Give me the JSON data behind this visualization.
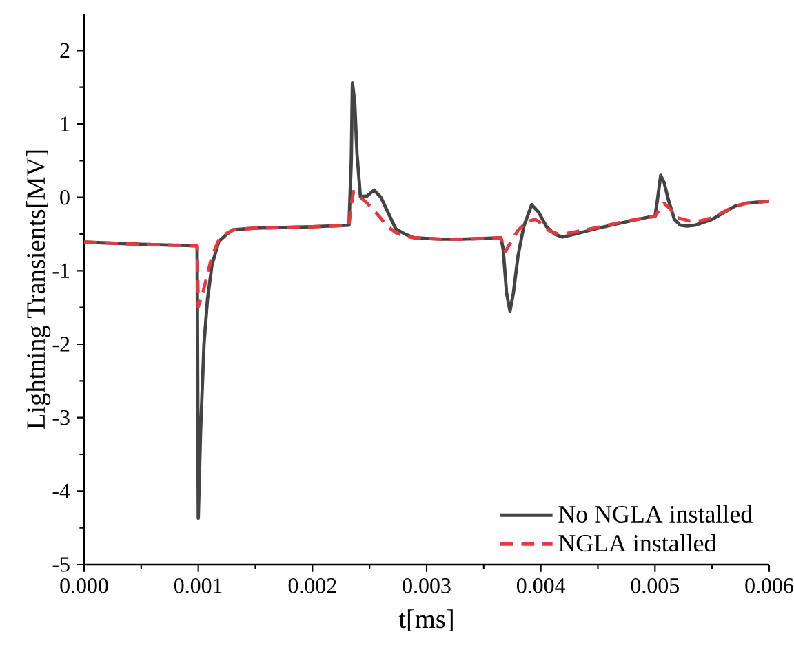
{
  "chart_data": {
    "type": "line",
    "xlabel": "t[ms]",
    "ylabel": "Lightning Transients[MV]",
    "xlim": [
      0,
      0.006
    ],
    "ylim": [
      -5,
      2.5
    ],
    "xticks": [
      {
        "value": 0,
        "label": "0.000"
      },
      0.001,
      0.002,
      0.003,
      0.004,
      0.005,
      0.006
    ],
    "yticks": [
      -5,
      -4,
      -3,
      -2,
      -1,
      0,
      1,
      2
    ],
    "legend": "bottom right",
    "grid": false,
    "series": [
      {
        "name": "No NGLA installed",
        "color": "#444444",
        "line_style": "solid",
        "x": [
          0,
          0.0005,
          0.00099,
          0.001,
          0.00102,
          0.00105,
          0.00108,
          0.00112,
          0.00118,
          0.00125,
          0.00131,
          0.0015,
          0.002,
          0.00232,
          0.00234,
          0.00235,
          0.00237,
          0.00239,
          0.00242,
          0.00248,
          0.00254,
          0.0026,
          0.00266,
          0.00273,
          0.00281,
          0.00289,
          0.003,
          0.00313,
          0.0033,
          0.0035,
          0.00365,
          0.00367,
          0.0037,
          0.00373,
          0.00376,
          0.0038,
          0.00385,
          0.00392,
          0.00398,
          0.00405,
          0.00412,
          0.00419,
          0.0043,
          0.0045,
          0.0047,
          0.00494,
          0.005,
          0.00502,
          0.00505,
          0.00508,
          0.00512,
          0.00517,
          0.00522,
          0.00528,
          0.00535,
          0.0055,
          0.0057,
          0.0058,
          0.006
        ],
        "values": [
          -0.61,
          -0.64,
          -0.66,
          -4.37,
          -3.2,
          -2.0,
          -1.4,
          -0.92,
          -0.6,
          -0.5,
          -0.44,
          -0.42,
          -0.4,
          -0.38,
          0.5,
          1.56,
          1.3,
          0.6,
          0.01,
          0.02,
          0.1,
          0.0,
          -0.2,
          -0.43,
          -0.5,
          -0.55,
          -0.56,
          -0.57,
          -0.57,
          -0.56,
          -0.55,
          -0.7,
          -1.3,
          -1.55,
          -1.3,
          -0.8,
          -0.4,
          -0.1,
          -0.2,
          -0.4,
          -0.5,
          -0.54,
          -0.5,
          -0.42,
          -0.35,
          -0.27,
          -0.26,
          -0.05,
          0.3,
          0.2,
          -0.05,
          -0.3,
          -0.38,
          -0.39,
          -0.38,
          -0.3,
          -0.12,
          -0.08,
          -0.05
        ]
      },
      {
        "name": "NGLA installed",
        "color": "#e8383d",
        "line_style": "dashed",
        "x": [
          0,
          0.0005,
          0.00099,
          0.001,
          0.00104,
          0.00108,
          0.00112,
          0.00118,
          0.00125,
          0.00131,
          0.0015,
          0.002,
          0.00232,
          0.00234,
          0.00236,
          0.00242,
          0.00248,
          0.00258,
          0.00266,
          0.00273,
          0.00281,
          0.00289,
          0.003,
          0.00313,
          0.0033,
          0.0035,
          0.00365,
          0.00369,
          0.00374,
          0.0038,
          0.00388,
          0.00395,
          0.004,
          0.00407,
          0.00415,
          0.0042,
          0.0043,
          0.0045,
          0.0047,
          0.00494,
          0.005,
          0.00504,
          0.00508,
          0.00513,
          0.0052,
          0.0053,
          0.0054,
          0.0055,
          0.0057,
          0.0058,
          0.006
        ],
        "values": [
          -0.61,
          -0.64,
          -0.66,
          -1.49,
          -1.3,
          -1.05,
          -0.8,
          -0.58,
          -0.49,
          -0.44,
          -0.42,
          -0.4,
          -0.38,
          -0.1,
          0.08,
          0.0,
          -0.08,
          -0.25,
          -0.4,
          -0.48,
          -0.53,
          -0.55,
          -0.56,
          -0.57,
          -0.57,
          -0.56,
          -0.55,
          -0.74,
          -0.6,
          -0.45,
          -0.33,
          -0.3,
          -0.35,
          -0.45,
          -0.5,
          -0.5,
          -0.47,
          -0.41,
          -0.34,
          -0.27,
          -0.26,
          -0.16,
          -0.08,
          -0.15,
          -0.28,
          -0.32,
          -0.32,
          -0.28,
          -0.12,
          -0.08,
          -0.05
        ]
      }
    ]
  }
}
